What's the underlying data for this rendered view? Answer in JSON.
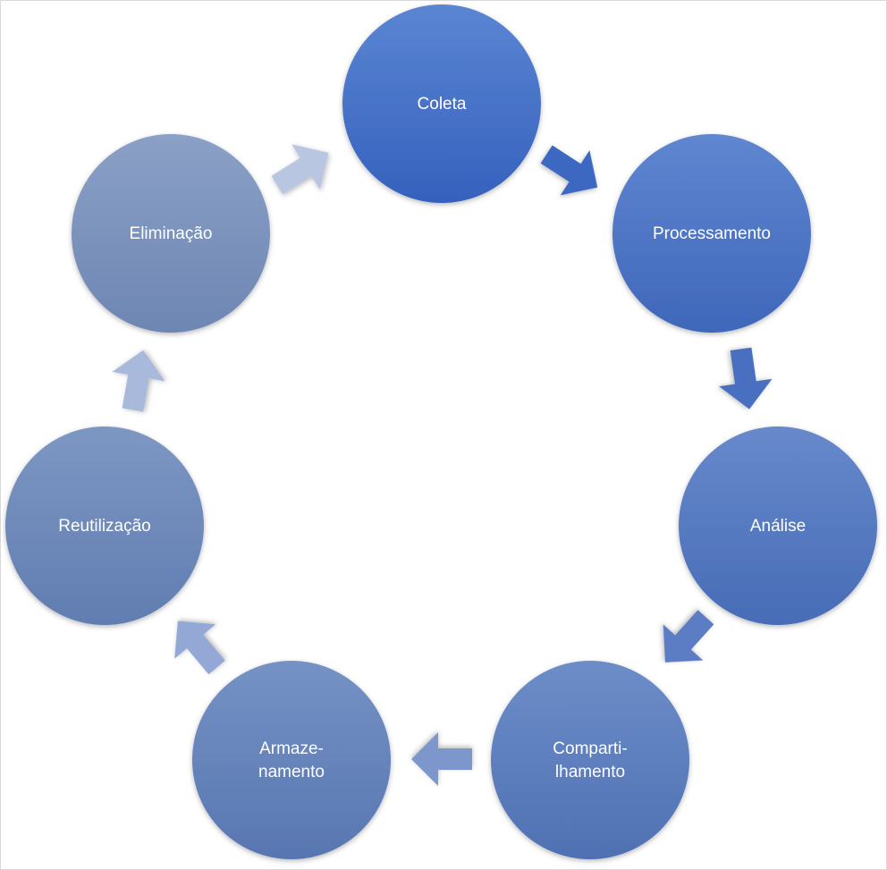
{
  "diagram": {
    "type": "cycle",
    "colors": {
      "coleta": "#4169c1",
      "processamento": "#4a6fbf",
      "analise": "#5274bc",
      "compartilhamento": "#5a79b8",
      "armazenamento": "#627db4",
      "reutilizacao": "#6b83b1",
      "eliminacao": "#7a8fb6",
      "arrow_light": "#b7c3de"
    },
    "nodes": [
      {
        "id": "coleta",
        "lines": [
          "Coleta"
        ]
      },
      {
        "id": "processamento",
        "lines": [
          "Processamento"
        ]
      },
      {
        "id": "analise",
        "lines": [
          "Análise"
        ]
      },
      {
        "id": "compartilhamento",
        "lines": [
          "Comparti-",
          "lhamento"
        ]
      },
      {
        "id": "armazenamento",
        "lines": [
          "Armaze-",
          "namento"
        ]
      },
      {
        "id": "reutilizacao",
        "lines": [
          "Reutilização"
        ]
      },
      {
        "id": "eliminacao",
        "lines": [
          "Eliminação"
        ]
      }
    ]
  }
}
